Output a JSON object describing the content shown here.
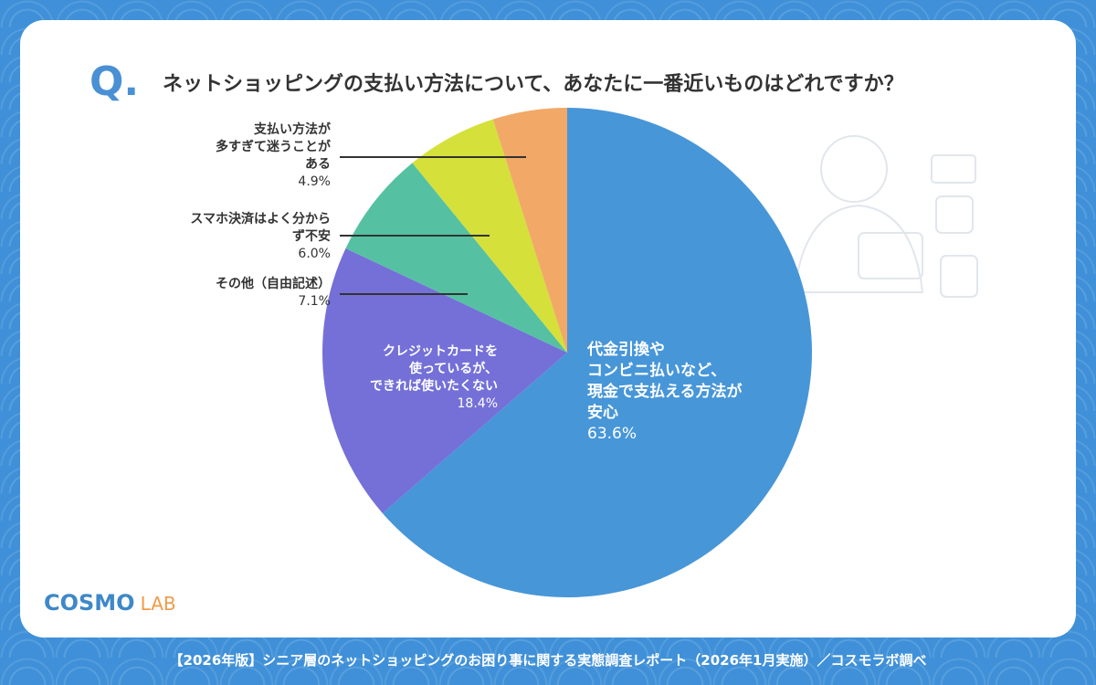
{
  "question_mark": "Q.",
  "chart_data": {
    "type": "pie",
    "title": "ネットショッピングの支払い方法について、あなたに一番近いものはどれですか？",
    "categories": [
      "代金引換や\nコンビニ払いなど、\n現金で支払える方法が\n安心",
      "クレジットカードを\n使っているが、\nできれば使いたくない",
      "その他（自由記述）",
      "スマホ決済はよく分から\nず不安",
      "支払い方法が\n多すぎて迷うことが\nある"
    ],
    "values": [
      63.6,
      18.4,
      7.1,
      6.0,
      4.9
    ],
    "value_labels": [
      "63.6%",
      "18.4%",
      "7.1%",
      "6.0%",
      "4.9%"
    ],
    "colors": [
      "#4796d8",
      "#7470d8",
      "#55c1a2",
      "#d5e03b",
      "#f2a866"
    ]
  },
  "logo": {
    "main": "COSMO",
    "sub": "LAB"
  },
  "footer": "【2026年版】シニア層のネットショッピングのお困り事に関する実態調査レポート（2026年1月実施）／コスモラボ調べ"
}
